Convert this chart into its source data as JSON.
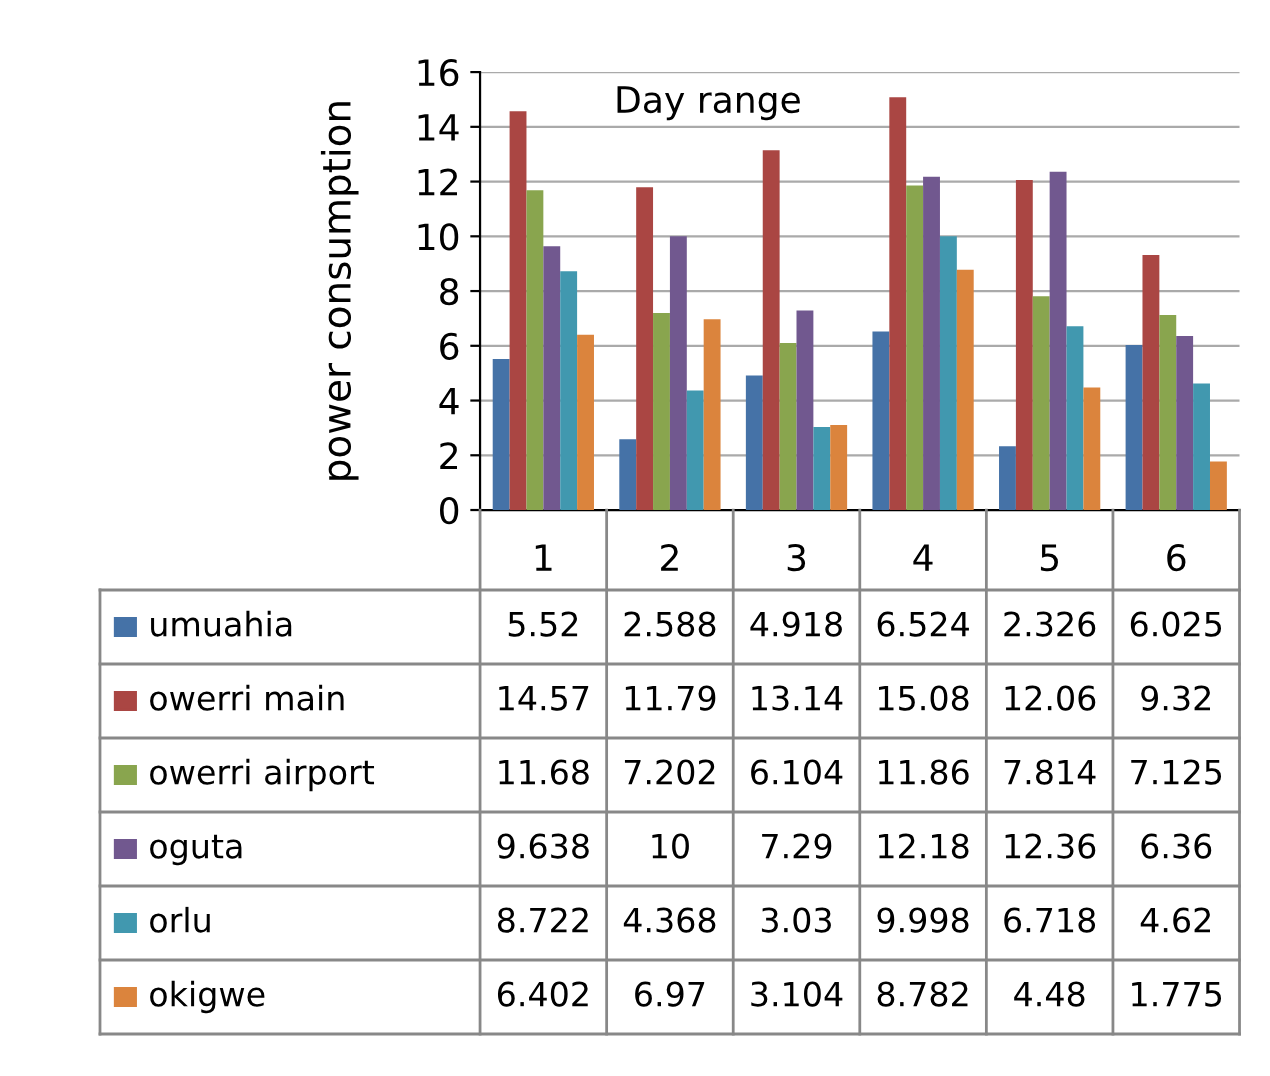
{
  "chart_data": {
    "type": "bar",
    "title": "Day range",
    "ylabel": "power consumption",
    "categories": [
      "1",
      "2",
      "3",
      "4",
      "5",
      "6"
    ],
    "series": [
      {
        "name": "umuahia",
        "color": "#4572a7",
        "values": [
          5.52,
          2.588,
          4.918,
          6.524,
          2.326,
          6.025
        ]
      },
      {
        "name": "owerri main",
        "color": "#aa4643",
        "values": [
          14.57,
          11.79,
          13.14,
          15.08,
          12.06,
          9.32
        ]
      },
      {
        "name": "owerri airport",
        "color": "#89a54e",
        "values": [
          11.68,
          7.202,
          6.104,
          11.86,
          7.814,
          7.125
        ]
      },
      {
        "name": "oguta",
        "color": "#71588f",
        "values": [
          9.638,
          10,
          7.29,
          12.18,
          12.36,
          6.36
        ]
      },
      {
        "name": "orlu",
        "color": "#4198af",
        "values": [
          8.722,
          4.368,
          3.03,
          9.998,
          6.718,
          4.62
        ]
      },
      {
        "name": "okigwe",
        "color": "#db843d",
        "values": [
          6.402,
          6.97,
          3.104,
          8.782,
          4.48,
          1.775
        ]
      }
    ],
    "ylim": [
      0,
      16
    ],
    "yticks": [
      0,
      2,
      4,
      6,
      8,
      10,
      12,
      14,
      16
    ],
    "grid": "y",
    "legend": "bottom",
    "data_labels": true
  }
}
